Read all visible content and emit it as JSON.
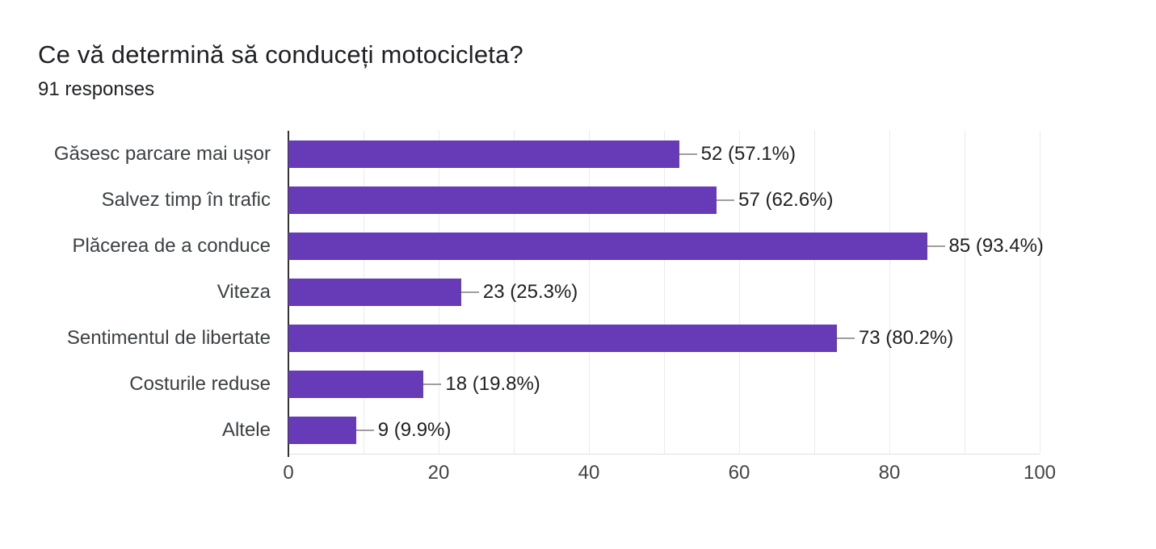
{
  "header": {
    "title": "Ce vă determină să conduceți motocicleta?",
    "responses": "91 responses"
  },
  "chart_data": {
    "type": "bar",
    "orientation": "horizontal",
    "title": "Ce vă determină să conduceți motocicleta?",
    "subtitle": "91 responses",
    "categories": [
      "Găsesc parcare mai ușor",
      "Salvez timp în trafic",
      "Plăcerea de a conduce",
      "Viteza",
      "Sentimentul de libertate",
      "Costurile reduse",
      "Altele"
    ],
    "values": [
      52,
      57,
      85,
      23,
      73,
      18,
      9
    ],
    "value_labels": [
      "52 (57.1%)",
      "57 (62.6%)",
      "85 (93.4%)",
      "23 (25.3%)",
      "73 (80.2%)",
      "18 (19.8%)",
      "9 (9.9%)"
    ],
    "x_ticks": [
      0,
      20,
      40,
      60,
      80,
      100
    ],
    "xlim": [
      0,
      100
    ],
    "grid_interval": 10,
    "grid_on": true,
    "legend_position": "none",
    "xlabel": "",
    "ylabel": ""
  },
  "colors": {
    "bar": "#673ab7",
    "axis_line": "#333333",
    "gridline": "#ebebeb",
    "plot_baseline": "#e0e0e0",
    "connector": "#9e9e9e",
    "title_text": "#202124",
    "category_text": "#3c4043",
    "value_text": "#212121",
    "tick_text": "#444444"
  }
}
